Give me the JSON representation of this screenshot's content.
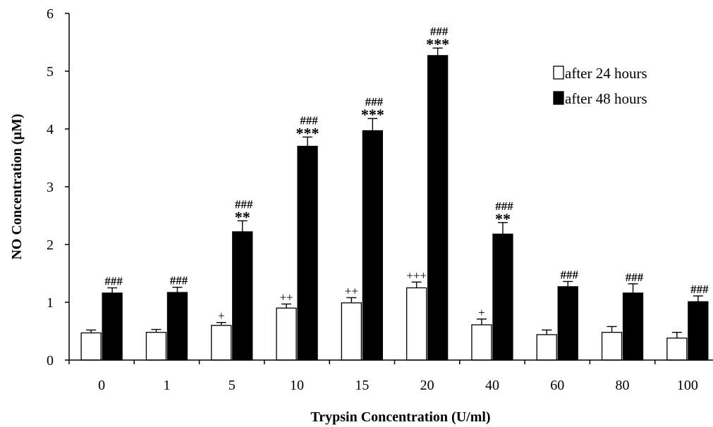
{
  "chart_data": {
    "type": "bar",
    "title": "",
    "xlabel": "Trypsin  Concentration (U/ml)",
    "ylabel": "NO Concentration (µM)",
    "ylim": [
      0,
      6
    ],
    "yticks": [
      "0",
      "1",
      "2",
      "3",
      "4",
      "5",
      "6"
    ],
    "grid": false,
    "legend_position": "top-right",
    "categories": [
      "0",
      "1",
      "5",
      "10",
      "15",
      "20",
      "40",
      "60",
      "80",
      "100"
    ],
    "series": [
      {
        "name": "after 24 hours",
        "color": "#ffffff",
        "values": [
          0.47,
          0.48,
          0.6,
          0.9,
          0.99,
          1.25,
          0.61,
          0.44,
          0.48,
          0.38
        ],
        "errors": [
          0.05,
          0.05,
          0.05,
          0.07,
          0.09,
          0.1,
          0.1,
          0.08,
          0.1,
          0.1
        ],
        "annotations": [
          "",
          "",
          "+",
          "++",
          "++",
          "+++",
          "+",
          "",
          "",
          ""
        ]
      },
      {
        "name": "after 48 hours",
        "color": "#000000",
        "values": [
          1.16,
          1.17,
          2.22,
          3.7,
          3.97,
          5.27,
          2.18,
          1.27,
          1.16,
          1.01
        ],
        "errors": [
          0.09,
          0.09,
          0.19,
          0.16,
          0.21,
          0.13,
          0.2,
          0.09,
          0.16,
          0.1
        ],
        "annotations_hash": [
          "###",
          "###",
          "###",
          "###",
          "###",
          "###",
          "###",
          "###",
          "###",
          "###"
        ],
        "annotations_star": [
          "",
          "",
          "**",
          "***",
          "***",
          "***",
          "**",
          "",
          "",
          ""
        ]
      }
    ]
  }
}
